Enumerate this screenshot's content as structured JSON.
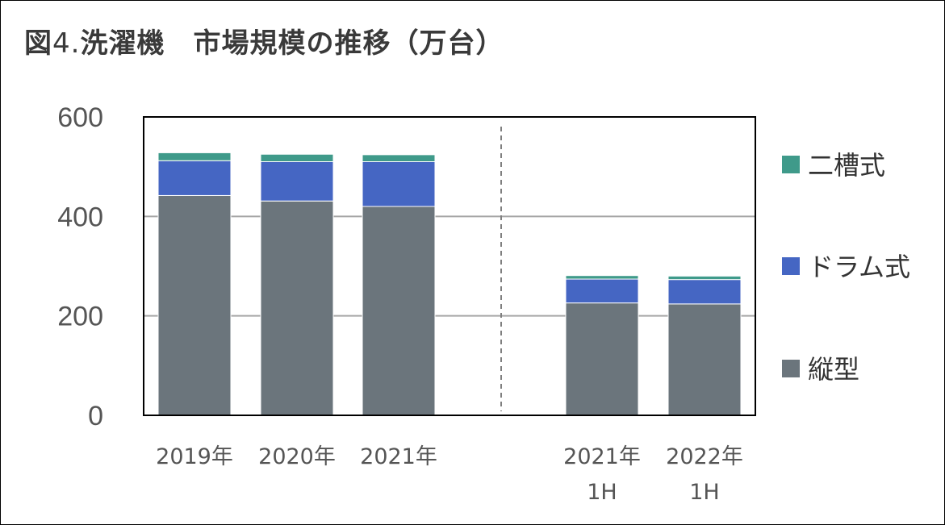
{
  "title": {
    "prefix": "図",
    "number": "4.",
    "text": "洗濯機　市場規模の推移（万台）"
  },
  "chart_data": {
    "type": "bar",
    "stacked": true,
    "categories": [
      [
        "2019年"
      ],
      [
        "2020年"
      ],
      [
        "2021年"
      ],
      [
        "2021年",
        "1H"
      ],
      [
        "2022年",
        "1H"
      ]
    ],
    "series": [
      {
        "name": "縦型",
        "color": "#6b757c",
        "values": [
          442,
          431,
          420,
          226,
          224
        ]
      },
      {
        "name": "ドラム式",
        "color": "#4566c3",
        "values": [
          70,
          79,
          90,
          48,
          49
        ]
      },
      {
        "name": "二槽式",
        "color": "#3f9a8a",
        "values": [
          16,
          15,
          14,
          7,
          7
        ]
      }
    ],
    "ylim": [
      0,
      600
    ],
    "yticks": [
      0,
      200,
      400,
      600
    ],
    "grid": true,
    "legend_position": "right",
    "separator": "dashed line between 2021年 and 2021年 1H"
  }
}
